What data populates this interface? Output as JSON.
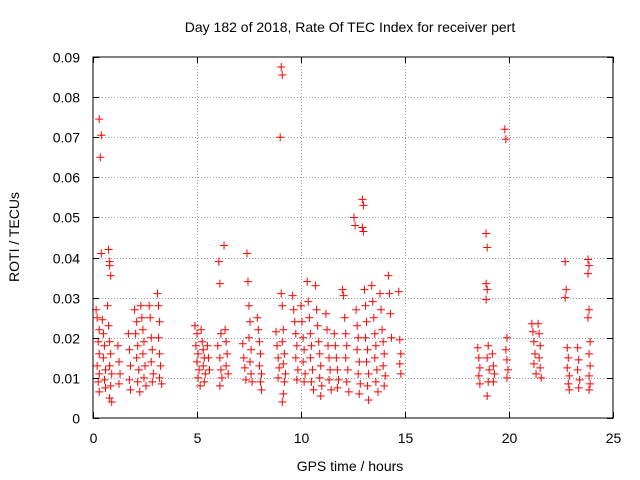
{
  "chart_data": {
    "type": "scatter",
    "title": "Day 182 of 2018, Rate Of TEC Index for receiver pert",
    "xlabel": "GPS time / hours",
    "ylabel": "ROTI / TECUs",
    "xlim": [
      0,
      25
    ],
    "ylim": [
      0,
      0.09
    ],
    "x_ticks": [
      0,
      5,
      10,
      15,
      20,
      25
    ],
    "x_tick_labels": [
      "0",
      "5",
      "10",
      "15",
      "20",
      "25"
    ],
    "y_ticks": [
      0,
      0.01,
      0.02,
      0.03,
      0.04,
      0.05,
      0.06,
      0.07,
      0.08,
      0.09
    ],
    "y_tick_labels": [
      "0",
      "0.01",
      "0.02",
      "0.03",
      "0.04",
      "0.05",
      "0.06",
      "0.07",
      "0.08",
      "0.09"
    ],
    "grid": true,
    "marker": "+",
    "series": [
      {
        "name": "ROTI",
        "color": "#ff0000",
        "points": [
          [
            0.3,
            0.0745
          ],
          [
            0.4,
            0.0705
          ],
          [
            0.35,
            0.065
          ],
          [
            0.4,
            0.041
          ],
          [
            0.75,
            0.042
          ],
          [
            0.8,
            0.039
          ],
          [
            0.8,
            0.038
          ],
          [
            0.85,
            0.0355
          ],
          [
            0.15,
            0.027
          ],
          [
            0.2,
            0.025
          ],
          [
            0.3,
            0.022
          ],
          [
            0.25,
            0.019
          ],
          [
            0.3,
            0.016
          ],
          [
            0.2,
            0.013
          ],
          [
            0.3,
            0.011
          ],
          [
            0.25,
            0.009
          ],
          [
            0.3,
            0.0065
          ],
          [
            0.45,
            0.0245
          ],
          [
            0.5,
            0.021
          ],
          [
            0.55,
            0.018
          ],
          [
            0.5,
            0.015
          ],
          [
            0.6,
            0.012
          ],
          [
            0.55,
            0.0095
          ],
          [
            0.6,
            0.0075
          ],
          [
            0.7,
            0.028
          ],
          [
            0.75,
            0.023
          ],
          [
            0.8,
            0.019
          ],
          [
            0.85,
            0.016
          ],
          [
            0.8,
            0.013
          ],
          [
            0.9,
            0.011
          ],
          [
            0.85,
            0.008
          ],
          [
            0.8,
            0.005
          ],
          [
            0.9,
            0.004
          ],
          [
            1.2,
            0.018
          ],
          [
            1.25,
            0.014
          ],
          [
            1.3,
            0.011
          ],
          [
            1.25,
            0.0085
          ],
          [
            1.7,
            0.021
          ],
          [
            1.75,
            0.017
          ],
          [
            1.8,
            0.013
          ],
          [
            1.75,
            0.0095
          ],
          [
            1.8,
            0.007
          ],
          [
            2.0,
            0.027
          ],
          [
            2.1,
            0.024
          ],
          [
            2.05,
            0.021
          ],
          [
            2.15,
            0.018
          ],
          [
            2.1,
            0.015
          ],
          [
            2.2,
            0.012
          ],
          [
            2.15,
            0.009
          ],
          [
            2.25,
            0.0065
          ],
          [
            2.3,
            0.028
          ],
          [
            2.35,
            0.025
          ],
          [
            2.4,
            0.022
          ],
          [
            2.45,
            0.019
          ],
          [
            2.4,
            0.016
          ],
          [
            2.5,
            0.013
          ],
          [
            2.45,
            0.01
          ],
          [
            2.55,
            0.008
          ],
          [
            2.7,
            0.028
          ],
          [
            2.75,
            0.025
          ],
          [
            2.8,
            0.02
          ],
          [
            2.85,
            0.017
          ],
          [
            2.8,
            0.014
          ],
          [
            2.9,
            0.011
          ],
          [
            2.85,
            0.009
          ],
          [
            3.1,
            0.031
          ],
          [
            3.15,
            0.028
          ],
          [
            3.2,
            0.024
          ],
          [
            3.15,
            0.02
          ],
          [
            3.2,
            0.016
          ],
          [
            3.25,
            0.013
          ],
          [
            3.2,
            0.01
          ],
          [
            3.3,
            0.0085
          ],
          [
            4.9,
            0.023
          ],
          [
            5.0,
            0.021
          ],
          [
            4.95,
            0.018
          ],
          [
            5.05,
            0.016
          ],
          [
            5.0,
            0.014
          ],
          [
            5.1,
            0.012
          ],
          [
            5.05,
            0.01
          ],
          [
            5.15,
            0.008
          ],
          [
            5.2,
            0.022
          ],
          [
            5.25,
            0.019
          ],
          [
            5.3,
            0.017
          ],
          [
            5.35,
            0.015
          ],
          [
            5.3,
            0.013
          ],
          [
            5.4,
            0.011
          ],
          [
            5.35,
            0.009
          ],
          [
            5.5,
            0.018
          ],
          [
            5.55,
            0.015
          ],
          [
            5.6,
            0.012
          ],
          [
            6.05,
            0.039
          ],
          [
            6.1,
            0.0335
          ],
          [
            6.15,
            0.021
          ],
          [
            6.0,
            0.018
          ],
          [
            6.1,
            0.015
          ],
          [
            6.15,
            0.012
          ],
          [
            6.2,
            0.01
          ],
          [
            6.1,
            0.008
          ],
          [
            6.3,
            0.043
          ],
          [
            6.35,
            0.022
          ],
          [
            6.4,
            0.019
          ],
          [
            6.45,
            0.016
          ],
          [
            6.4,
            0.013
          ],
          [
            6.5,
            0.011
          ],
          [
            7.2,
            0.0185
          ],
          [
            7.25,
            0.015
          ],
          [
            7.3,
            0.0125
          ],
          [
            7.35,
            0.0095
          ],
          [
            7.4,
            0.041
          ],
          [
            7.45,
            0.034
          ],
          [
            7.5,
            0.028
          ],
          [
            7.55,
            0.024
          ],
          [
            7.5,
            0.02
          ],
          [
            7.6,
            0.017
          ],
          [
            7.55,
            0.014
          ],
          [
            7.6,
            0.011
          ],
          [
            7.65,
            0.009
          ],
          [
            7.9,
            0.025
          ],
          [
            7.95,
            0.022
          ],
          [
            8.0,
            0.019
          ],
          [
            8.05,
            0.016
          ],
          [
            8.0,
            0.013
          ],
          [
            8.1,
            0.011
          ],
          [
            8.05,
            0.009
          ],
          [
            8.1,
            0.007
          ],
          [
            8.8,
            0.0215
          ],
          [
            8.85,
            0.018
          ],
          [
            8.9,
            0.015
          ],
          [
            8.95,
            0.0125
          ],
          [
            8.9,
            0.01
          ],
          [
            9.05,
            0.0875
          ],
          [
            9.1,
            0.0855
          ],
          [
            9.0,
            0.07
          ],
          [
            9.05,
            0.031
          ],
          [
            9.1,
            0.028
          ],
          [
            9.15,
            0.022
          ],
          [
            9.1,
            0.019
          ],
          [
            9.2,
            0.016
          ],
          [
            9.15,
            0.0135
          ],
          [
            9.25,
            0.011
          ],
          [
            9.2,
            0.009
          ],
          [
            9.15,
            0.006
          ],
          [
            9.1,
            0.004
          ],
          [
            9.6,
            0.0305
          ],
          [
            9.65,
            0.027
          ],
          [
            9.7,
            0.024
          ],
          [
            9.75,
            0.021
          ],
          [
            9.8,
            0.018
          ],
          [
            9.75,
            0.015
          ],
          [
            9.85,
            0.012
          ],
          [
            9.8,
            0.0095
          ],
          [
            10.0,
            0.028
          ],
          [
            10.05,
            0.024
          ],
          [
            10.1,
            0.02
          ],
          [
            10.15,
            0.017
          ],
          [
            10.1,
            0.014
          ],
          [
            10.2,
            0.011
          ],
          [
            10.15,
            0.009
          ],
          [
            10.3,
            0.034
          ],
          [
            10.35,
            0.029
          ],
          [
            10.4,
            0.025
          ],
          [
            10.45,
            0.021
          ],
          [
            10.5,
            0.018
          ],
          [
            10.45,
            0.015
          ],
          [
            10.55,
            0.012
          ],
          [
            10.5,
            0.009
          ],
          [
            10.6,
            0.007
          ],
          [
            10.7,
            0.033
          ],
          [
            10.75,
            0.027
          ],
          [
            10.8,
            0.023
          ],
          [
            10.85,
            0.019
          ],
          [
            10.9,
            0.016
          ],
          [
            10.95,
            0.013
          ],
          [
            10.9,
            0.01
          ],
          [
            11.0,
            0.008
          ],
          [
            10.95,
            0.0055
          ],
          [
            11.2,
            0.026
          ],
          [
            11.25,
            0.022
          ],
          [
            11.3,
            0.018
          ],
          [
            11.35,
            0.015
          ],
          [
            11.4,
            0.012
          ],
          [
            11.35,
            0.0095
          ],
          [
            11.45,
            0.007
          ],
          [
            11.6,
            0.021
          ],
          [
            11.65,
            0.018
          ],
          [
            11.7,
            0.015
          ],
          [
            11.75,
            0.012
          ],
          [
            11.8,
            0.0095
          ],
          [
            11.75,
            0.0075
          ],
          [
            12.0,
            0.032
          ],
          [
            12.05,
            0.0305
          ],
          [
            12.1,
            0.025
          ],
          [
            12.15,
            0.021
          ],
          [
            12.2,
            0.018
          ],
          [
            12.15,
            0.015
          ],
          [
            12.25,
            0.012
          ],
          [
            12.2,
            0.009
          ],
          [
            12.3,
            0.0065
          ],
          [
            12.55,
            0.05
          ],
          [
            12.6,
            0.048
          ],
          [
            12.65,
            0.027
          ],
          [
            12.7,
            0.023
          ],
          [
            12.75,
            0.02
          ],
          [
            12.7,
            0.017
          ],
          [
            12.8,
            0.014
          ],
          [
            12.75,
            0.011
          ],
          [
            12.85,
            0.0085
          ],
          [
            12.8,
            0.006
          ],
          [
            12.95,
            0.0545
          ],
          [
            13.0,
            0.053
          ],
          [
            12.95,
            0.0475
          ],
          [
            13.0,
            0.0465
          ],
          [
            13.05,
            0.032
          ],
          [
            13.1,
            0.028
          ],
          [
            13.15,
            0.024
          ],
          [
            13.1,
            0.02
          ],
          [
            13.2,
            0.017
          ],
          [
            13.15,
            0.014
          ],
          [
            13.25,
            0.011
          ],
          [
            13.2,
            0.008
          ],
          [
            13.25,
            0.0045
          ],
          [
            13.4,
            0.033
          ],
          [
            13.45,
            0.029
          ],
          [
            13.5,
            0.025
          ],
          [
            13.55,
            0.021
          ],
          [
            13.6,
            0.018
          ],
          [
            13.55,
            0.015
          ],
          [
            13.65,
            0.012
          ],
          [
            13.6,
            0.009
          ],
          [
            13.7,
            0.0065
          ],
          [
            13.8,
            0.031
          ],
          [
            13.85,
            0.027
          ],
          [
            13.9,
            0.022
          ],
          [
            13.95,
            0.019
          ],
          [
            14.0,
            0.016
          ],
          [
            13.95,
            0.013
          ],
          [
            14.05,
            0.0105
          ],
          [
            14.0,
            0.008
          ],
          [
            14.2,
            0.0355
          ],
          [
            14.25,
            0.031
          ],
          [
            14.3,
            0.026
          ],
          [
            14.35,
            0.02
          ],
          [
            14.7,
            0.0315
          ],
          [
            14.75,
            0.0195
          ],
          [
            14.8,
            0.016
          ],
          [
            14.75,
            0.0135
          ],
          [
            14.8,
            0.011
          ],
          [
            18.5,
            0.0175
          ],
          [
            18.55,
            0.015
          ],
          [
            18.6,
            0.0125
          ],
          [
            18.55,
            0.0105
          ],
          [
            18.6,
            0.0085
          ],
          [
            18.9,
            0.046
          ],
          [
            18.95,
            0.0425
          ],
          [
            18.9,
            0.0335
          ],
          [
            18.95,
            0.032
          ],
          [
            18.9,
            0.0295
          ],
          [
            19.0,
            0.018
          ],
          [
            18.95,
            0.015
          ],
          [
            19.05,
            0.012
          ],
          [
            19.0,
            0.009
          ],
          [
            18.95,
            0.0055
          ],
          [
            19.2,
            0.016
          ],
          [
            19.25,
            0.013
          ],
          [
            19.3,
            0.011
          ],
          [
            19.25,
            0.009
          ],
          [
            19.8,
            0.072
          ],
          [
            19.85,
            0.0695
          ],
          [
            19.9,
            0.02
          ],
          [
            19.85,
            0.017
          ],
          [
            19.9,
            0.0145
          ],
          [
            19.95,
            0.012
          ],
          [
            19.9,
            0.01
          ],
          [
            21.1,
            0.0235
          ],
          [
            21.15,
            0.0215
          ],
          [
            21.2,
            0.019
          ],
          [
            21.25,
            0.016
          ],
          [
            21.2,
            0.0135
          ],
          [
            21.3,
            0.011
          ],
          [
            21.4,
            0.0235
          ],
          [
            21.45,
            0.021
          ],
          [
            21.5,
            0.018
          ],
          [
            21.45,
            0.015
          ],
          [
            21.5,
            0.0125
          ],
          [
            21.55,
            0.01
          ],
          [
            22.7,
            0.039
          ],
          [
            22.75,
            0.032
          ],
          [
            22.7,
            0.03
          ],
          [
            22.8,
            0.0175
          ],
          [
            22.85,
            0.015
          ],
          [
            22.8,
            0.0125
          ],
          [
            22.9,
            0.0105
          ],
          [
            22.85,
            0.0085
          ],
          [
            22.9,
            0.007
          ],
          [
            23.3,
            0.0175
          ],
          [
            23.35,
            0.0145
          ],
          [
            23.3,
            0.012
          ],
          [
            23.4,
            0.0095
          ],
          [
            23.35,
            0.0075
          ],
          [
            23.8,
            0.0395
          ],
          [
            23.85,
            0.038
          ],
          [
            23.8,
            0.036
          ],
          [
            23.85,
            0.027
          ],
          [
            23.8,
            0.025
          ],
          [
            23.9,
            0.019
          ],
          [
            23.85,
            0.016
          ],
          [
            23.9,
            0.013
          ],
          [
            23.85,
            0.0105
          ],
          [
            23.9,
            0.0085
          ],
          [
            23.85,
            0.007
          ]
        ]
      }
    ]
  }
}
